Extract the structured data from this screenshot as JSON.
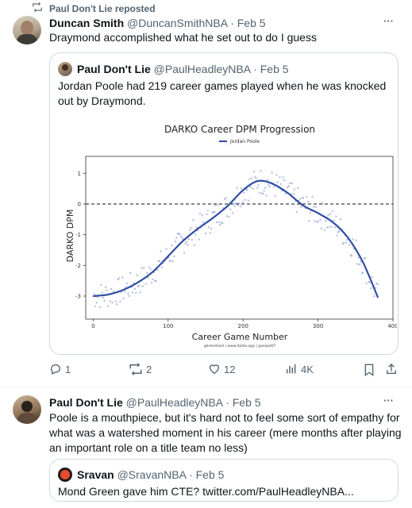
{
  "tweet1": {
    "repost_label": "Paul Don't Lie reposted",
    "author_name": "Duncan Smith",
    "author_handle": "@DuncanSmithNBA",
    "time": "· Feb 5",
    "text": "Draymond accomplished what he set out to do I guess",
    "more": "···",
    "quote": {
      "author_name": "Paul Don't Lie",
      "author_handle": "@PaulHeadleyNBA",
      "time": "· Feb 5",
      "text": "Jordan Poole had 219 career games played when he was knocked out by Draymond."
    },
    "actions": {
      "replies": "1",
      "reposts": "2",
      "likes": "12",
      "views": "4K"
    }
  },
  "tweet2": {
    "author_name": "Paul Don't Lie",
    "author_handle": "@PaulHeadleyNBA",
    "time": "· Feb 5",
    "more": "···",
    "text": "Poole is a mouthpiece, but it's hard not to feel some sort of empathy for what was a watershed moment in his career (mere months after playing an important role on a title team no less)",
    "quote": {
      "author_name": "Sravan",
      "author_handle": "@SravanNBA",
      "time": "· Feb 5",
      "text": "Mond Green gave him CTE? twitter.com/PaulHeadleyNBA..."
    }
  },
  "chart_data": {
    "type": "line",
    "title": "DARKO Career DPM Progression",
    "legend": [
      "Jordan Poole"
    ],
    "legend_position": "top-center",
    "xlabel": "Career Game Number",
    "ylabel": "DARKO DPM",
    "credit": "@kmedved | www.darko.app | @anpatt7",
    "xlim": [
      -10,
      400
    ],
    "ylim": [
      -3.75,
      1.55
    ],
    "xticks": [
      0,
      100,
      200,
      300,
      400
    ],
    "yticks": [
      1,
      0,
      -1,
      -2,
      -3
    ],
    "reference_line": {
      "y": 0,
      "style": "dashed"
    },
    "colors": {
      "line": "#2f4ea3",
      "points": "#8ea0d8"
    },
    "series": [
      {
        "name": "Jordan Poole",
        "x": [
          0,
          20,
          40,
          60,
          80,
          100,
          120,
          140,
          160,
          180,
          200,
          220,
          240,
          260,
          280,
          300,
          320,
          340,
          360,
          380
        ],
        "values": [
          -3.0,
          -2.95,
          -2.8,
          -2.55,
          -2.2,
          -1.7,
          -1.2,
          -0.8,
          -0.45,
          -0.05,
          0.45,
          0.75,
          0.65,
          0.35,
          -0.05,
          -0.3,
          -0.6,
          -1.1,
          -1.9,
          -3.05
        ]
      }
    ]
  }
}
